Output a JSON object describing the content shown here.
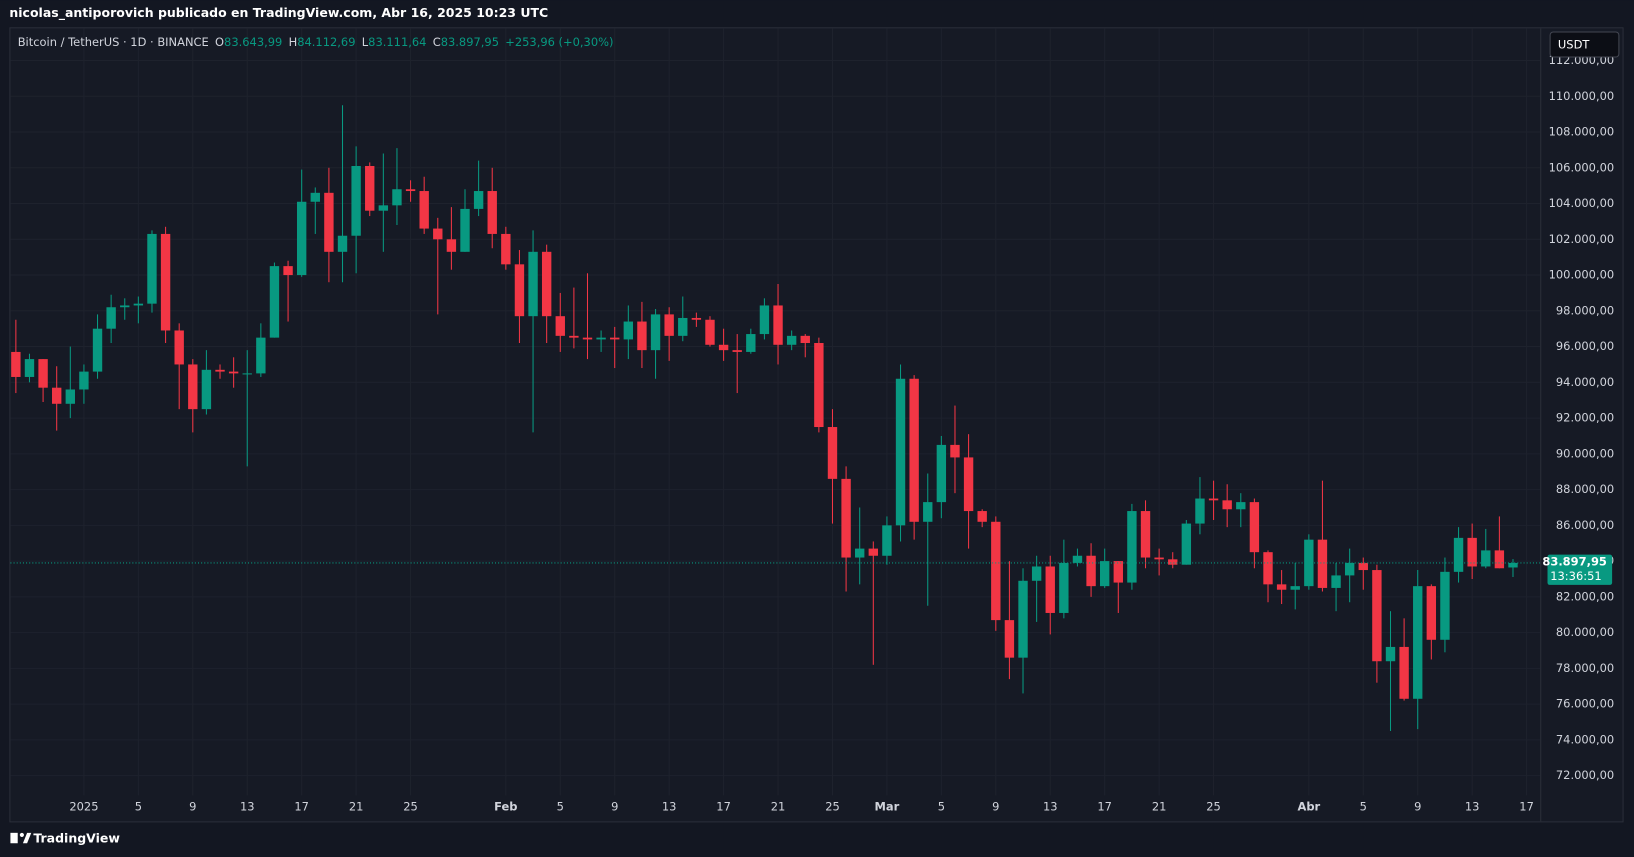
{
  "publisher": "nicolas_antiporovich publicado en TradingView.com, Abr 16, 2025 10:23 UTC",
  "legend": {
    "symbol": "Bitcoin / TetherUS · 1D · BINANCE",
    "o_label": "O",
    "o_value": "83.643,99",
    "h_label": "H",
    "h_value": "84.112,69",
    "l_label": "L",
    "l_value": "83.111,64",
    "c_label": "C",
    "c_value": "83.897,95",
    "change": "+253,96 (+0,30%)"
  },
  "currency": "USDT",
  "price_tag": {
    "price": "83.897,95",
    "countdown": "13:36:51"
  },
  "brand": "TradingView",
  "chart_data": {
    "type": "candlestick",
    "up_color": "#089981",
    "down_color": "#f23645",
    "grid": true,
    "xlim": [
      -0.4,
      112
    ],
    "xticks": [
      {
        "value": 5,
        "label": "2025"
      },
      {
        "value": 9,
        "label": "5"
      },
      {
        "value": 13,
        "label": "9"
      },
      {
        "value": 17,
        "label": "13"
      },
      {
        "value": 21,
        "label": "17"
      },
      {
        "value": 25,
        "label": "21"
      },
      {
        "value": 29,
        "label": "25"
      },
      {
        "value": 36,
        "label": "Feb"
      },
      {
        "value": 40,
        "label": "5"
      },
      {
        "value": 44,
        "label": "9"
      },
      {
        "value": 48,
        "label": "13"
      },
      {
        "value": 52,
        "label": "17"
      },
      {
        "value": 56,
        "label": "21"
      },
      {
        "value": 60,
        "label": "25"
      },
      {
        "value": 64,
        "label": "Mar"
      },
      {
        "value": 68,
        "label": "5"
      },
      {
        "value": 72,
        "label": "9"
      },
      {
        "value": 76,
        "label": "13"
      },
      {
        "value": 80,
        "label": "17"
      },
      {
        "value": 84,
        "label": "21"
      },
      {
        "value": 88,
        "label": "25"
      },
      {
        "value": 95,
        "label": "Abr"
      },
      {
        "value": 99,
        "label": "5"
      },
      {
        "value": 103,
        "label": "9"
      },
      {
        "value": 107,
        "label": "13"
      },
      {
        "value": 111,
        "label": "17"
      }
    ],
    "ylim": [
      71250,
      113800
    ],
    "yticks": [
      {
        "value": 72000,
        "label": "72.000,00"
      },
      {
        "value": 74000,
        "label": "74.000,00"
      },
      {
        "value": 76000,
        "label": "76.000,00"
      },
      {
        "value": 78000,
        "label": "78.000,00"
      },
      {
        "value": 80000,
        "label": "80.000,00"
      },
      {
        "value": 82000,
        "label": "82.000,00"
      },
      {
        "value": 84000,
        "label": "84.000,00"
      },
      {
        "value": 86000,
        "label": "86.000,00"
      },
      {
        "value": 88000,
        "label": "88.000,00"
      },
      {
        "value": 90000,
        "label": "90.000,00"
      },
      {
        "value": 92000,
        "label": "92.000,00"
      },
      {
        "value": 94000,
        "label": "94.000,00"
      },
      {
        "value": 96000,
        "label": "96.000,00"
      },
      {
        "value": 98000,
        "label": "98.000,00"
      },
      {
        "value": 100000,
        "label": "100.000,00"
      },
      {
        "value": 102000,
        "label": "102.000,00"
      },
      {
        "value": 104000,
        "label": "104.000,00"
      },
      {
        "value": 106000,
        "label": "106.000,00"
      },
      {
        "value": 108000,
        "label": "108.000,00"
      },
      {
        "value": 110000,
        "label": "110.000,00"
      },
      {
        "value": 112000,
        "label": "112.000,00"
      }
    ],
    "open": [
      95700,
      94300,
      95300,
      93700,
      92800,
      93600,
      94600,
      97000,
      98200,
      98300,
      98400,
      102300,
      96900,
      95000,
      92500,
      94700,
      94600,
      94500,
      94500,
      96500,
      100500,
      100000,
      104100,
      104600,
      101300,
      102200,
      106100,
      103600,
      103900,
      104800,
      104700,
      102600,
      102000,
      101300,
      103700,
      104700,
      102300,
      100600,
      97700,
      101300,
      97700,
      96600,
      96500,
      96400,
      96500,
      96400,
      97400,
      95800,
      97800,
      96600,
      97600,
      97500,
      96100,
      95800,
      95700,
      96700,
      98300,
      96100,
      96600,
      96200,
      91500,
      88600,
      84200,
      84700,
      84300,
      86000,
      94200,
      86200,
      87300,
      90500,
      89800,
      86800,
      86200,
      80700,
      78600,
      82900,
      83700,
      81100,
      83900,
      84300,
      82600,
      84000,
      82800,
      86800,
      84200,
      84100,
      83800,
      86100,
      87500,
      87400,
      86900,
      87300,
      84500,
      82700,
      82400,
      82600,
      85200,
      82500,
      83200,
      83900,
      83500,
      78400,
      79200,
      76300,
      82600,
      79600,
      83400,
      85300,
      83700,
      84600,
      83643.99
    ],
    "high": [
      97500,
      95600,
      95300,
      94900,
      96000,
      95000,
      97800,
      98900,
      98700,
      98800,
      102500,
      102700,
      97300,
      95300,
      95800,
      95000,
      95400,
      95800,
      97300,
      100700,
      100800,
      105900,
      104900,
      106000,
      109500,
      107200,
      106300,
      106800,
      107100,
      105300,
      105500,
      103200,
      103800,
      104800,
      106400,
      106000,
      102700,
      101400,
      102500,
      101700,
      99000,
      99300,
      100100,
      96900,
      97100,
      98300,
      98500,
      98100,
      98200,
      98800,
      97900,
      97700,
      97000,
      96700,
      97000,
      98700,
      99500,
      96900,
      96700,
      96500,
      92500,
      89300,
      87000,
      85100,
      86500,
      95000,
      94400,
      88900,
      91000,
      92700,
      91100,
      86900,
      86500,
      84000,
      83600,
      84300,
      84300,
      85200,
      84700,
      85000,
      84700,
      84000,
      87200,
      87400,
      84700,
      84500,
      86300,
      88700,
      88500,
      88300,
      87800,
      87500,
      84600,
      83500,
      83900,
      85500,
      88500,
      83900,
      84700,
      84200,
      83800,
      81200,
      80800,
      83500,
      82700,
      84200,
      85900,
      86100,
      85800,
      86500,
      84112.69
    ],
    "low": [
      93400,
      94000,
      92900,
      91300,
      92000,
      92800,
      94200,
      96200,
      97500,
      97300,
      97900,
      96200,
      92500,
      91200,
      92200,
      94200,
      93700,
      89300,
      94300,
      96500,
      97400,
      99900,
      102300,
      99600,
      99600,
      100100,
      103300,
      101300,
      102800,
      104100,
      102300,
      97800,
      100300,
      101300,
      103300,
      101500,
      100300,
      96200,
      91200,
      96200,
      95700,
      95900,
      95300,
      95700,
      94800,
      95300,
      94800,
      94200,
      95200,
      96300,
      97100,
      96000,
      95200,
      93400,
      95600,
      96400,
      95000,
      95800,
      95400,
      91200,
      86100,
      82300,
      82700,
      78200,
      83800,
      85100,
      85200,
      81500,
      86400,
      87800,
      84700,
      85900,
      80100,
      77400,
      76600,
      80600,
      79900,
      80800,
      83700,
      82000,
      82500,
      81100,
      82400,
      83600,
      83200,
      83600,
      83800,
      85500,
      86300,
      85900,
      85900,
      83600,
      81700,
      81600,
      81300,
      82400,
      82300,
      81200,
      81700,
      82400,
      77200,
      74500,
      76200,
      74600,
      78500,
      78900,
      82800,
      83000,
      83600,
      83600,
      83111.64
    ],
    "close": [
      94300,
      95300,
      93700,
      92800,
      93600,
      94600,
      97000,
      98200,
      98300,
      98400,
      102300,
      96900,
      95000,
      92500,
      94700,
      94600,
      94500,
      94500,
      96500,
      100500,
      100000,
      104100,
      104600,
      101300,
      102200,
      106100,
      103600,
      103900,
      104800,
      104700,
      102600,
      102000,
      101300,
      103700,
      104700,
      102300,
      100600,
      97700,
      101300,
      97700,
      96600,
      96500,
      96400,
      96500,
      96400,
      97400,
      95800,
      97800,
      96600,
      97600,
      97500,
      96100,
      95800,
      95700,
      96700,
      98300,
      96100,
      96600,
      96200,
      91500,
      88600,
      84200,
      84700,
      84300,
      86000,
      94200,
      86200,
      87300,
      90500,
      89800,
      86800,
      86200,
      80700,
      78600,
      82900,
      83700,
      81100,
      83900,
      84300,
      82600,
      84000,
      82800,
      86800,
      84200,
      84100,
      83800,
      86100,
      87500,
      87400,
      86900,
      87300,
      84500,
      82700,
      82400,
      82600,
      85200,
      82500,
      83200,
      83900,
      83500,
      78400,
      79200,
      76300,
      82600,
      79600,
      83400,
      85300,
      83700,
      84600,
      83600,
      83897.95
    ]
  }
}
